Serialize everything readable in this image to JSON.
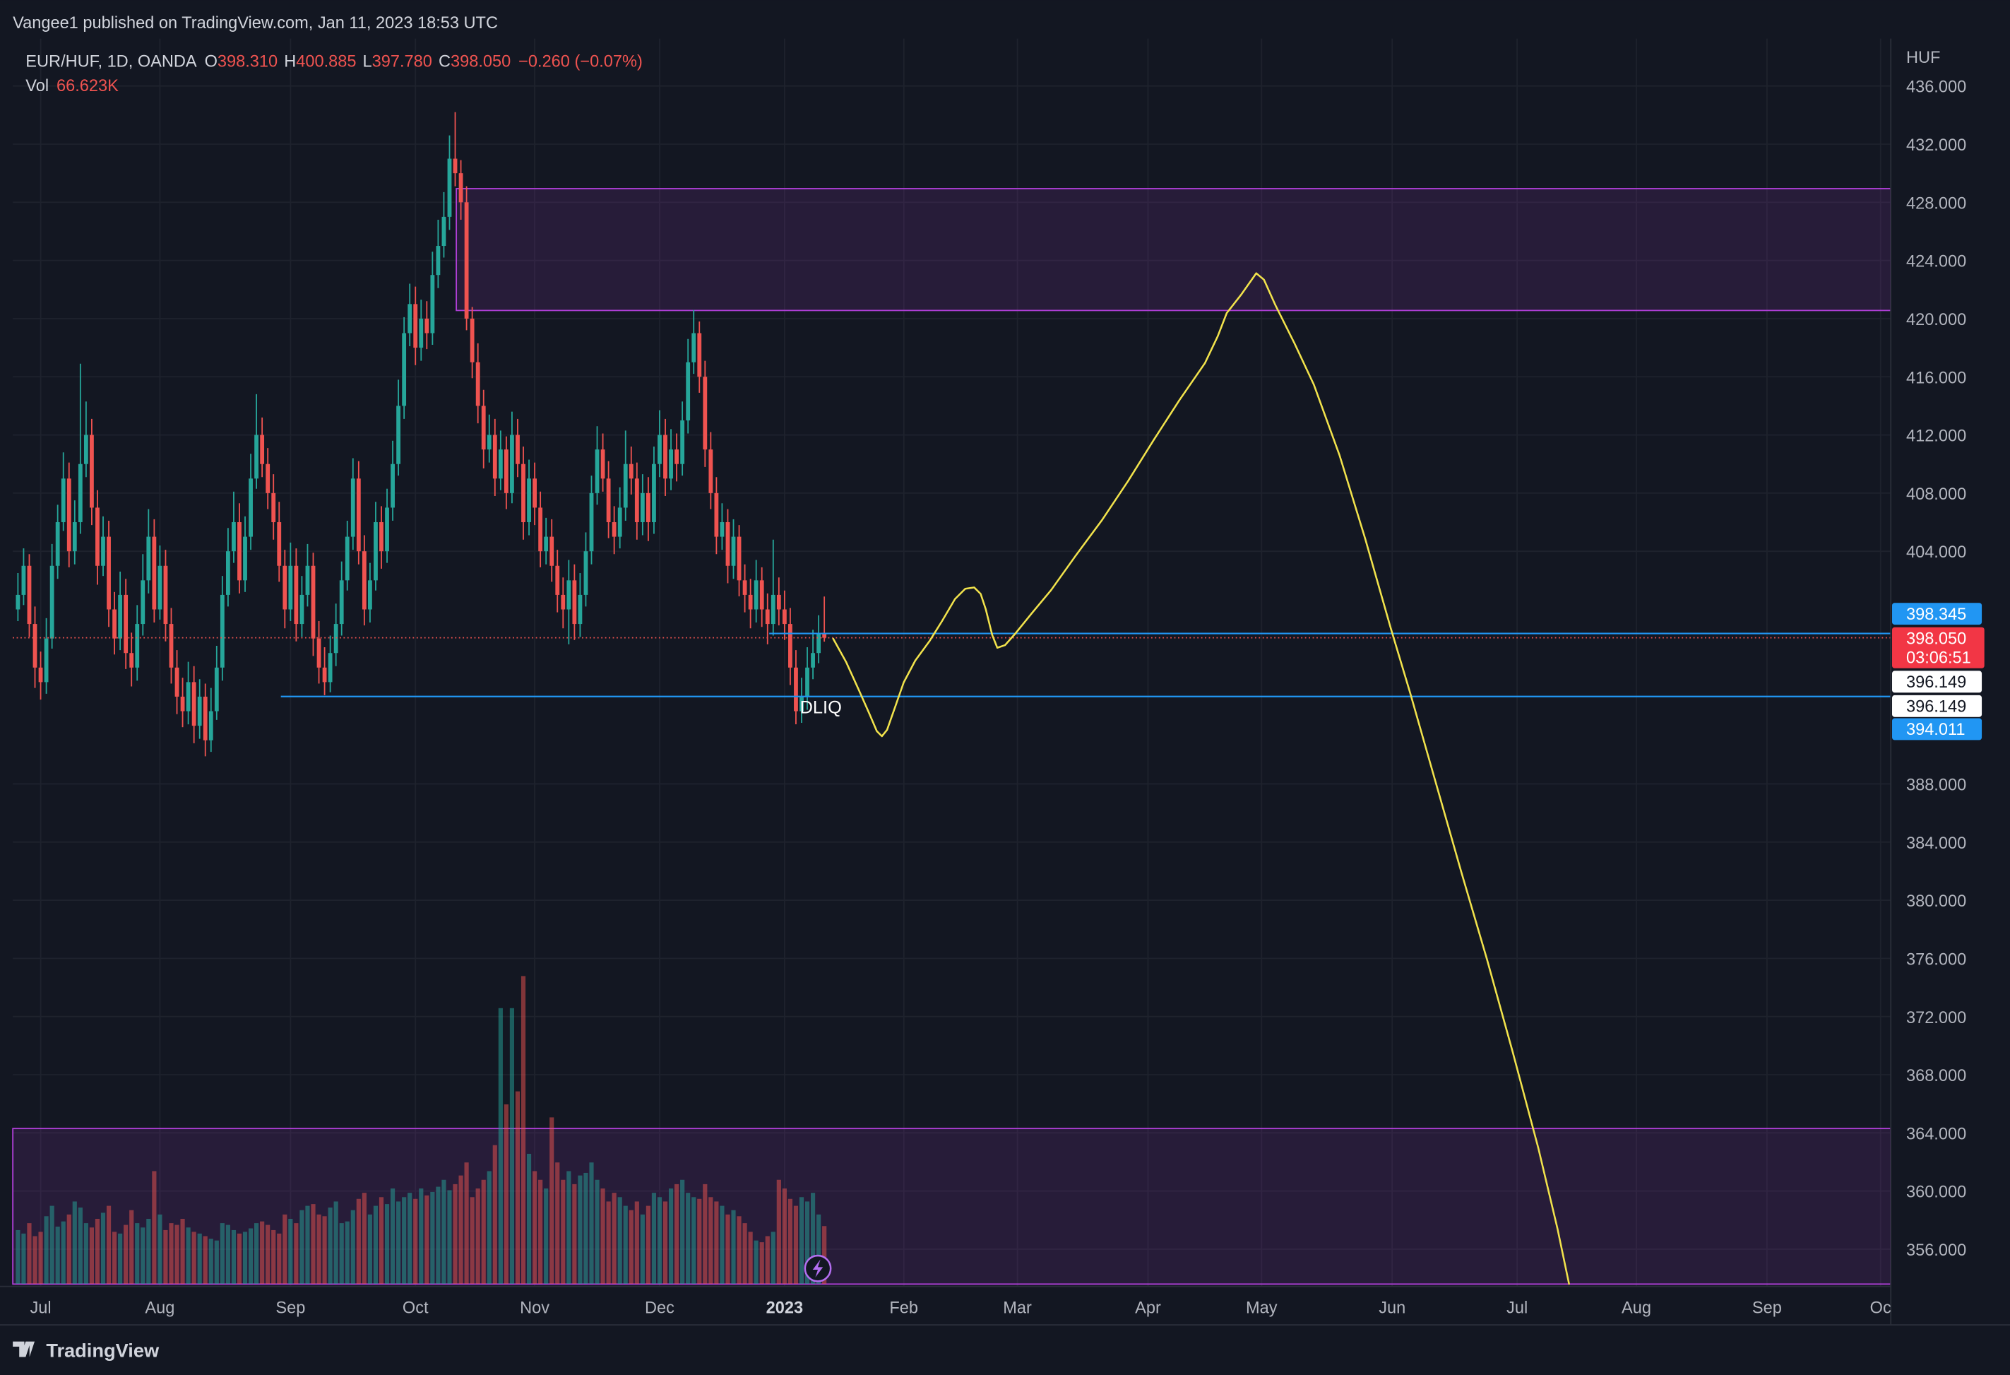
{
  "header": "Vangee1 published on TradingView.com, Jan 11, 2023 18:53 UTC",
  "footer": "TradingView",
  "chart_data": {
    "type": "candlestick",
    "legend": {
      "symbol": "EUR/HUF, 1D, OANDA",
      "items": [
        {
          "key": "O",
          "text": "398.310"
        },
        {
          "key": "H",
          "text": "400.885"
        },
        {
          "key": "L",
          "text": "397.780"
        },
        {
          "key": "C",
          "text": "398.050"
        }
      ],
      "change": "−0.260 (−0.07%)",
      "vol_key": "Vol",
      "vol_text": "66.623K"
    },
    "colors": {
      "up": "#26a69a",
      "down": "#ef5350",
      "zone": "#b03fd8",
      "line": "#2196f3",
      "forecast": "#f2e34c"
    },
    "ohlc": [
      [
        400,
        402.5,
        399.2,
        401
      ],
      [
        401,
        404.2,
        400.3,
        403
      ],
      [
        403,
        403.8,
        398.1,
        399
      ],
      [
        399,
        400.2,
        394.6,
        396
      ],
      [
        396,
        397.1,
        393.8,
        395
      ],
      [
        395,
        399.4,
        394.2,
        398
      ],
      [
        398,
        404.5,
        397.3,
        403
      ],
      [
        403,
        407.2,
        402.1,
        406
      ],
      [
        406,
        410.8,
        405.4,
        409
      ],
      [
        409,
        410.1,
        402.9,
        404
      ],
      [
        404,
        407.5,
        403.1,
        406
      ],
      [
        406,
        416.9,
        405.2,
        410
      ],
      [
        410,
        414.3,
        409.1,
        412
      ],
      [
        412,
        413.1,
        405.8,
        407
      ],
      [
        407,
        408.2,
        401.7,
        403
      ],
      [
        403,
        406.4,
        402.3,
        405
      ],
      [
        405,
        406.1,
        398.8,
        400
      ],
      [
        400,
        401.2,
        396.9,
        398
      ],
      [
        398,
        402.6,
        397.2,
        401
      ],
      [
        401,
        402.1,
        395.9,
        397
      ],
      [
        397,
        398.4,
        394.7,
        396
      ],
      [
        396,
        400.3,
        395.1,
        399
      ],
      [
        399,
        403.8,
        398.2,
        402
      ],
      [
        402,
        406.9,
        401.1,
        405
      ],
      [
        405,
        406.2,
        399.1,
        400
      ],
      [
        400,
        404.4,
        399.3,
        403
      ],
      [
        403,
        404.1,
        397.8,
        399
      ],
      [
        399,
        400.1,
        394.9,
        396
      ],
      [
        396,
        397.2,
        392.8,
        394
      ],
      [
        394,
        395.3,
        391.9,
        393
      ],
      [
        393,
        396.4,
        392.1,
        395
      ],
      [
        395,
        396.1,
        390.8,
        392
      ],
      [
        392,
        395.2,
        391.1,
        394
      ],
      [
        394,
        394.9,
        389.9,
        391
      ],
      [
        391,
        394.6,
        390.2,
        393
      ],
      [
        393,
        397.5,
        392.4,
        396
      ],
      [
        396,
        402.3,
        395.1,
        401
      ],
      [
        401,
        405.6,
        400.2,
        404
      ],
      [
        404,
        408.1,
        403.2,
        406
      ],
      [
        406,
        407.3,
        401.1,
        402
      ],
      [
        402,
        406.4,
        401.2,
        405
      ],
      [
        405,
        410.7,
        404.1,
        409
      ],
      [
        409,
        414.8,
        408.3,
        412
      ],
      [
        412,
        413.2,
        409.1,
        410
      ],
      [
        410,
        411.1,
        406.9,
        408
      ],
      [
        408,
        409.3,
        404.8,
        406
      ],
      [
        406,
        407.4,
        401.9,
        403
      ],
      [
        403,
        404.1,
        398.7,
        400
      ],
      [
        400,
        404.6,
        399.2,
        403
      ],
      [
        403,
        404.2,
        397.8,
        399
      ],
      [
        399,
        402.3,
        398.1,
        401
      ],
      [
        401,
        404.5,
        400.2,
        403
      ],
      [
        403,
        403.9,
        396.8,
        398
      ],
      [
        398,
        399.2,
        394.9,
        396
      ],
      [
        396,
        397.4,
        394.1,
        395
      ],
      [
        395,
        398.2,
        394.3,
        397
      ],
      [
        397,
        400.4,
        396.1,
        399
      ],
      [
        399,
        403.3,
        398.2,
        402
      ],
      [
        402,
        406.1,
        401.3,
        405
      ],
      [
        405,
        410.4,
        404.1,
        409
      ],
      [
        409,
        410.2,
        403.1,
        404
      ],
      [
        404,
        405.1,
        398.9,
        400
      ],
      [
        400,
        403.2,
        399.1,
        402
      ],
      [
        402,
        407.4,
        401.3,
        406
      ],
      [
        406,
        407.1,
        402.8,
        404
      ],
      [
        404,
        408.3,
        403.2,
        407
      ],
      [
        407,
        411.6,
        406.1,
        410
      ],
      [
        410,
        415.8,
        409.2,
        414
      ],
      [
        414,
        420.1,
        413.1,
        419
      ],
      [
        419,
        422.4,
        418.1,
        421
      ],
      [
        421,
        422.2,
        416.8,
        418
      ],
      [
        418,
        421.3,
        417.1,
        420
      ],
      [
        420,
        421.2,
        417.9,
        419
      ],
      [
        419,
        424.6,
        418.2,
        423
      ],
      [
        423,
        426.8,
        422.1,
        425
      ],
      [
        425,
        428.7,
        424.2,
        427
      ],
      [
        427,
        432.6,
        426.1,
        431
      ],
      [
        431,
        434.2,
        429.1,
        430
      ],
      [
        430,
        430.9,
        426.8,
        428
      ],
      [
        428,
        429.1,
        419.2,
        420
      ],
      [
        420,
        420.8,
        415.9,
        417
      ],
      [
        417,
        418.3,
        412.8,
        414
      ],
      [
        414,
        415.1,
        409.7,
        411
      ],
      [
        411,
        413.4,
        410.1,
        412
      ],
      [
        412,
        413.1,
        407.8,
        409
      ],
      [
        409,
        412.3,
        408.2,
        411
      ],
      [
        411,
        411.9,
        406.9,
        408
      ],
      [
        408,
        413.6,
        407.3,
        412
      ],
      [
        412,
        413.1,
        409.1,
        410
      ],
      [
        410,
        411.2,
        404.8,
        406
      ],
      [
        406,
        410.3,
        405.1,
        409
      ],
      [
        409,
        410.1,
        405.8,
        407
      ],
      [
        407,
        408.1,
        402.9,
        404
      ],
      [
        404,
        406.3,
        403.1,
        405
      ],
      [
        405,
        406.2,
        401.9,
        403
      ],
      [
        403,
        404.1,
        399.8,
        401
      ],
      [
        401,
        402.2,
        398.7,
        400
      ],
      [
        400,
        403.4,
        397.6,
        402
      ],
      [
        402,
        403.1,
        397.9,
        399
      ],
      [
        399,
        402.5,
        398.1,
        401
      ],
      [
        401,
        405.3,
        400.2,
        404
      ],
      [
        404,
        409.2,
        403.1,
        408
      ],
      [
        408,
        412.6,
        407.2,
        411
      ],
      [
        411,
        412.1,
        408.1,
        409
      ],
      [
        409,
        410.2,
        404.9,
        406
      ],
      [
        406,
        407.1,
        403.8,
        405
      ],
      [
        405,
        408.4,
        404.2,
        407
      ],
      [
        407,
        412.3,
        406.1,
        410
      ],
      [
        410,
        411.2,
        407.9,
        409
      ],
      [
        409,
        410.1,
        404.8,
        406
      ],
      [
        406,
        409.3,
        405.1,
        408
      ],
      [
        408,
        409.1,
        404.7,
        406
      ],
      [
        406,
        411.2,
        405.2,
        410
      ],
      [
        410,
        413.7,
        409.1,
        412
      ],
      [
        412,
        413.1,
        407.8,
        409
      ],
      [
        409,
        412.4,
        408.2,
        411
      ],
      [
        411,
        412.1,
        408.8,
        410
      ],
      [
        410,
        414.3,
        409.2,
        413
      ],
      [
        413,
        418.6,
        412.1,
        417
      ],
      [
        417,
        420.6,
        416.2,
        419
      ],
      [
        419,
        419.8,
        414.9,
        416
      ],
      [
        416,
        417.1,
        409.8,
        411
      ],
      [
        411,
        412.2,
        406.9,
        408
      ],
      [
        408,
        409.1,
        403.8,
        405
      ],
      [
        405,
        407.3,
        404.1,
        406
      ],
      [
        406,
        406.9,
        401.8,
        403
      ],
      [
        403,
        406.2,
        402.1,
        405
      ],
      [
        405,
        405.8,
        400.9,
        402
      ],
      [
        402,
        403.1,
        399.8,
        401
      ],
      [
        401,
        402.1,
        398.7,
        400
      ],
      [
        400,
        403.4,
        399.1,
        402
      ],
      [
        402,
        402.9,
        398.8,
        400
      ],
      [
        400,
        401.1,
        397.6,
        399
      ],
      [
        399,
        404.8,
        398.2,
        401
      ],
      [
        401,
        402.2,
        398.9,
        400
      ],
      [
        400,
        401.3,
        397.9,
        399
      ],
      [
        399,
        400.1,
        394.8,
        396
      ],
      [
        396,
        397.2,
        392.1,
        393
      ],
      [
        393,
        395.3,
        392.2,
        394
      ],
      [
        394,
        397.4,
        393.1,
        396
      ],
      [
        396,
        398.6,
        395.2,
        397
      ],
      [
        397,
        399.6,
        396.3,
        398.31
      ],
      [
        398.31,
        400.885,
        397.78,
        398.05
      ]
    ],
    "volume": [
      62,
      58,
      70,
      55,
      60,
      78,
      90,
      66,
      72,
      80,
      95,
      88,
      70,
      65,
      75,
      82,
      90,
      60,
      58,
      68,
      85,
      70,
      65,
      75,
      130,
      80,
      62,
      70,
      68,
      75,
      65,
      60,
      58,
      55,
      52,
      50,
      70,
      68,
      62,
      58,
      60,
      64,
      70,
      72,
      68,
      62,
      58,
      80,
      75,
      70,
      85,
      90,
      92,
      80,
      78,
      88,
      95,
      70,
      72,
      85,
      98,
      105,
      80,
      90,
      100,
      92,
      110,
      95,
      100,
      105,
      98,
      110,
      102,
      106,
      112,
      120,
      108,
      115,
      125,
      140,
      100,
      110,
      120,
      130,
      160,
      318,
      207,
      318,
      222,
      355,
      150,
      130,
      120,
      110,
      192,
      140,
      120,
      130,
      115,
      125,
      128,
      140,
      120,
      110,
      95,
      105,
      100,
      90,
      85,
      95,
      80,
      90,
      105,
      100,
      95,
      110,
      115,
      120,
      105,
      100,
      98,
      115,
      100,
      95,
      90,
      80,
      85,
      78,
      70,
      60,
      50,
      48,
      55,
      60,
      120,
      110,
      98,
      90,
      100,
      95,
      105,
      80,
      66.623
    ],
    "xlim": [
      -0.9,
      329.8
    ],
    "xticks": [
      {
        "value": 4,
        "label": "Jul"
      },
      {
        "value": 25,
        "label": "Aug"
      },
      {
        "value": 48,
        "label": "Sep"
      },
      {
        "value": 70,
        "label": "Oct"
      },
      {
        "value": 91,
        "label": "Nov"
      },
      {
        "value": 113,
        "label": "Dec"
      },
      {
        "value": 135,
        "label": "2023"
      },
      {
        "value": 156,
        "label": "Feb"
      },
      {
        "value": 176,
        "label": "Mar"
      },
      {
        "value": 199,
        "label": "Apr"
      },
      {
        "value": 219,
        "label": "May"
      },
      {
        "value": 242,
        "label": "Jun"
      },
      {
        "value": 264,
        "label": "Jul"
      },
      {
        "value": 285,
        "label": "Aug"
      },
      {
        "value": 308,
        "label": "Sep"
      },
      {
        "value": 328,
        "label": "Oc"
      }
    ],
    "ylim": [
      353.44,
      439.26
    ],
    "y_unit": "HUF",
    "yticks": [
      {
        "value": 436,
        "label": "436.000"
      },
      {
        "value": 432,
        "label": "432.000"
      },
      {
        "value": 428,
        "label": "428.000"
      },
      {
        "value": 424,
        "label": "424.000"
      },
      {
        "value": 420,
        "label": "420.000"
      },
      {
        "value": 416,
        "label": "416.000"
      },
      {
        "value": 412,
        "label": "412.000"
      },
      {
        "value": 408,
        "label": "408.000"
      },
      {
        "value": 404,
        "label": "404.000"
      },
      {
        "value": 388,
        "label": "388.000"
      },
      {
        "value": 384,
        "label": "384.000"
      },
      {
        "value": 380,
        "label": "380.000"
      },
      {
        "value": 376,
        "label": "376.000"
      },
      {
        "value": 372,
        "label": "372.000"
      },
      {
        "value": 368,
        "label": "368.000"
      },
      {
        "value": 364,
        "label": "364.000"
      },
      {
        "value": 360,
        "label": "360.000"
      },
      {
        "value": 356,
        "label": "356.000"
      }
    ],
    "grid": true,
    "zones": [
      {
        "start": 77.2,
        "top": 428.94,
        "bottom": 420.56
      },
      {
        "start": -0.9,
        "top": 364.3,
        "bottom": 353.6
      }
    ],
    "lines": [
      {
        "start": 132.3,
        "value": 398.345
      },
      {
        "start": 46.3,
        "value": 394.011
      }
    ],
    "annotation": "DLIQ",
    "price_labels": [
      {
        "label": "398.345",
        "color": "#2196f3",
        "text_color": "#ffffff"
      },
      {
        "label": "398.050",
        "color": "#f23645",
        "text_color": "#ffffff",
        "countdown": "03:06:51"
      },
      {
        "label": "396.149",
        "color": "#ffffff",
        "text_color": "#131722"
      },
      {
        "label": "396.149",
        "color": "#ffffff",
        "text_color": "#131722"
      },
      {
        "label": "394.011",
        "color": "#2196f3",
        "text_color": "#ffffff"
      }
    ]
  }
}
